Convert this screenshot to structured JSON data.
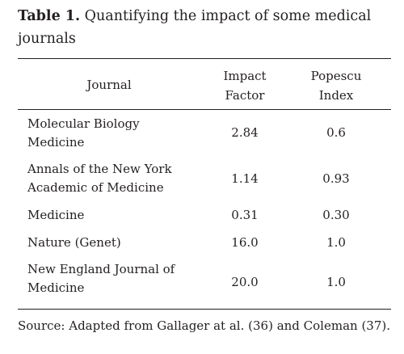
{
  "caption": {
    "label": "Table 1.",
    "text": "Quantifying the impact of some medical journals"
  },
  "headers": {
    "journal": "Journal",
    "impact_line1": "Impact",
    "impact_line2": "Factor",
    "popescu_line1": "Popescu",
    "popescu_line2": "Index"
  },
  "rows": [
    {
      "journal_line1": "Molecular Biology",
      "journal_line2": "Medicine",
      "impact": "2.84",
      "popescu": "0.6"
    },
    {
      "journal_line1": "Annals of the New York",
      "journal_line2": "Academic of Medicine",
      "impact": "1.14",
      "popescu": "0.93"
    },
    {
      "journal_line1": "Medicine",
      "journal_line2": "",
      "impact": "0.31",
      "popescu": "0.30"
    },
    {
      "journal_line1": "Nature (Genet)",
      "journal_line2": "",
      "impact": "16.0",
      "popescu": "1.0"
    },
    {
      "journal_line1": "New England Journal of",
      "journal_line2": "Medicine",
      "impact": "20.0",
      "popescu": "1.0"
    }
  ],
  "source": "Source: Adapted from Gallager at al. (36) and Coleman (37)."
}
